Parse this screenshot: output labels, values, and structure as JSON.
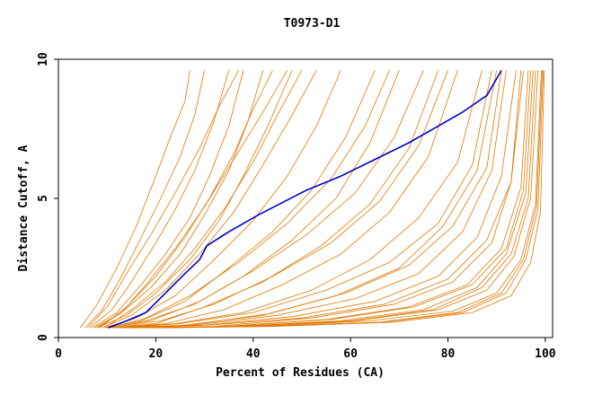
{
  "chart_data": {
    "type": "line",
    "title": "T0973-D1",
    "xlabel": "Percent of Residues (CA)",
    "ylabel": "Distance Cutoff, A",
    "xlim": [
      0,
      101.5
    ],
    "ylim": [
      0,
      10
    ],
    "xticks": [
      "0",
      "20",
      "40",
      "60",
      "80",
      "100"
    ],
    "yticks": [
      "0",
      "5",
      "10"
    ],
    "grid": false,
    "colors": {
      "highlight": "#0000cc",
      "others": "#e07800"
    },
    "highlight": {
      "x": [
        10.2,
        14,
        18,
        22,
        26,
        29,
        30.5,
        35,
        41,
        51,
        58,
        65,
        72,
        78,
        83,
        88,
        91
      ],
      "y": [
        0.35,
        0.6,
        0.9,
        1.6,
        2.3,
        2.8,
        3.3,
        3.8,
        4.4,
        5.3,
        5.8,
        6.4,
        7.0,
        7.6,
        8.1,
        8.7,
        9.6
      ]
    },
    "others": [
      {
        "x": [
          4.5,
          8,
          12,
          16,
          20,
          23,
          26,
          27
        ],
        "y": [
          0.35,
          1.2,
          2.5,
          4.0,
          5.8,
          7.2,
          8.5,
          9.6
        ]
      },
      {
        "x": [
          5.5,
          9,
          13,
          17,
          21,
          25,
          28,
          30
        ],
        "y": [
          0.35,
          1.0,
          2.2,
          3.6,
          5.0,
          6.5,
          8.0,
          9.6
        ]
      },
      {
        "x": [
          6.5,
          11,
          15,
          20,
          24,
          28,
          32,
          35
        ],
        "y": [
          0.35,
          1.0,
          2.0,
          3.4,
          4.6,
          6.0,
          7.8,
          9.6
        ]
      },
      {
        "x": [
          7,
          12,
          17,
          22,
          27,
          31,
          35,
          38
        ],
        "y": [
          0.35,
          0.9,
          1.9,
          3.0,
          4.3,
          5.8,
          7.6,
          9.6
        ]
      },
      {
        "x": [
          7.5,
          13,
          19,
          25,
          30,
          35,
          39,
          42
        ],
        "y": [
          0.35,
          0.9,
          1.8,
          3.0,
          4.4,
          6.0,
          7.8,
          9.6
        ]
      },
      {
        "x": [
          8,
          14,
          20,
          27,
          33,
          38,
          43,
          48
        ],
        "y": [
          0.35,
          0.8,
          1.6,
          2.8,
          4.2,
          5.8,
          7.6,
          9.6
        ]
      },
      {
        "x": [
          9,
          15,
          22,
          29,
          36,
          42,
          48,
          53
        ],
        "y": [
          0.35,
          0.8,
          1.7,
          3.0,
          4.5,
          6.2,
          8.0,
          9.6
        ]
      },
      {
        "x": [
          9.5,
          16,
          24,
          32,
          40,
          47,
          53,
          58
        ],
        "y": [
          0.35,
          0.7,
          1.5,
          2.8,
          4.2,
          5.8,
          7.6,
          9.6
        ]
      },
      {
        "x": [
          10,
          17,
          26,
          35,
          44,
          52,
          59,
          65
        ],
        "y": [
          0.35,
          0.6,
          1.3,
          2.5,
          3.8,
          5.3,
          7.2,
          9.6
        ]
      },
      {
        "x": [
          11,
          18,
          28,
          38,
          48,
          57,
          64,
          70
        ],
        "y": [
          0.35,
          0.6,
          1.2,
          2.2,
          3.5,
          5.0,
          7.0,
          9.6
        ]
      },
      {
        "x": [
          11.5,
          20,
          30,
          42,
          54,
          64,
          72,
          78
        ],
        "y": [
          0.35,
          0.5,
          1.1,
          2.0,
          3.3,
          4.8,
          6.8,
          9.6
        ]
      },
      {
        "x": [
          12,
          22,
          34,
          46,
          58,
          68,
          76,
          82
        ],
        "y": [
          0.35,
          0.5,
          1.0,
          1.9,
          3.0,
          4.5,
          6.5,
          9.6
        ]
      },
      {
        "x": [
          12.5,
          24,
          38,
          52,
          64,
          74,
          82,
          87
        ],
        "y": [
          0.35,
          0.5,
          0.9,
          1.7,
          2.8,
          4.3,
          6.3,
          9.6
        ]
      },
      {
        "x": [
          13,
          26,
          42,
          57,
          70,
          79,
          86,
          90
        ],
        "y": [
          0.35,
          0.45,
          0.8,
          1.5,
          2.5,
          4.0,
          6.0,
          9.6
        ]
      },
      {
        "x": [
          14,
          28,
          45,
          61,
          74,
          83,
          89,
          92
        ],
        "y": [
          0.35,
          0.45,
          0.8,
          1.4,
          2.3,
          3.8,
          6.0,
          9.6
        ]
      },
      {
        "x": [
          14.5,
          30,
          48,
          65,
          78,
          86,
          91,
          94
        ],
        "y": [
          0.35,
          0.45,
          0.75,
          1.3,
          2.2,
          3.6,
          5.8,
          9.6
        ]
      },
      {
        "x": [
          15,
          32,
          52,
          69,
          81,
          89,
          93,
          95
        ],
        "y": [
          0.35,
          0.4,
          0.7,
          1.2,
          2.0,
          3.4,
          5.6,
          9.6
        ]
      },
      {
        "x": [
          16,
          34,
          55,
          72,
          84,
          91,
          95,
          96.5
        ],
        "y": [
          0.35,
          0.4,
          0.65,
          1.1,
          1.9,
          3.2,
          5.4,
          9.6
        ]
      },
      {
        "x": [
          17,
          36,
          58,
          75,
          86,
          92,
          96,
          97.5
        ],
        "y": [
          0.35,
          0.4,
          0.6,
          1.0,
          1.8,
          3.0,
          5.2,
          9.6
        ]
      },
      {
        "x": [
          18,
          38,
          61,
          78,
          88,
          93.5,
          97,
          98.5
        ],
        "y": [
          0.35,
          0.4,
          0.6,
          1.0,
          1.7,
          2.9,
          5.0,
          9.6
        ]
      },
      {
        "x": [
          19,
          40,
          64,
          81,
          90,
          95,
          98,
          99.2
        ],
        "y": [
          0.35,
          0.4,
          0.6,
          0.95,
          1.6,
          2.8,
          4.8,
          9.6
        ]
      },
      {
        "x": [
          20,
          42,
          67,
          83,
          92,
          96,
          98.5,
          99.6
        ],
        "y": [
          0.35,
          0.4,
          0.55,
          0.9,
          1.6,
          2.8,
          4.6,
          9.6
        ]
      },
      {
        "x": [
          8.5,
          14,
          20,
          26,
          31,
          36,
          40,
          44
        ],
        "y": [
          0.35,
          1.1,
          2.2,
          3.6,
          5.0,
          6.6,
          8.2,
          9.6
        ]
      },
      {
        "x": [
          9.5,
          15,
          22,
          28,
          34,
          40,
          45,
          50
        ],
        "y": [
          0.35,
          1.0,
          2.0,
          3.2,
          4.6,
          6.3,
          8.0,
          9.6
        ]
      },
      {
        "x": [
          10.5,
          18,
          27,
          37,
          47,
          56,
          63,
          68
        ],
        "y": [
          0.35,
          0.7,
          1.5,
          2.7,
          4.1,
          5.7,
          7.6,
          9.6
        ]
      },
      {
        "x": [
          12,
          21,
          32,
          44,
          56,
          66,
          74,
          80
        ],
        "y": [
          0.35,
          0.6,
          1.2,
          2.2,
          3.4,
          4.9,
          6.9,
          9.6
        ]
      },
      {
        "x": [
          13.5,
          25,
          40,
          55,
          68,
          78,
          85,
          89
        ],
        "y": [
          0.35,
          0.5,
          0.9,
          1.7,
          2.7,
          4.1,
          6.2,
          9.6
        ]
      },
      {
        "x": [
          15.5,
          31,
          50,
          67,
          80,
          88,
          93,
          95.5
        ],
        "y": [
          0.35,
          0.45,
          0.7,
          1.2,
          2.1,
          3.5,
          5.6,
          9.6
        ]
      },
      {
        "x": [
          17.5,
          37,
          60,
          77,
          87,
          93,
          96.5,
          98
        ],
        "y": [
          0.35,
          0.4,
          0.6,
          1.0,
          1.8,
          3.0,
          5.0,
          9.6
        ]
      },
      {
        "x": [
          19.5,
          41,
          66,
          82,
          91,
          95.5,
          98.2,
          99.4
        ],
        "y": [
          0.35,
          0.4,
          0.55,
          0.9,
          1.6,
          2.8,
          4.7,
          9.6
        ]
      },
      {
        "x": [
          22,
          44,
          69,
          85,
          93,
          97,
          99,
          99.8
        ],
        "y": [
          0.35,
          0.4,
          0.55,
          0.9,
          1.5,
          2.7,
          4.5,
          9.6
        ]
      },
      {
        "x": [
          6,
          10,
          14,
          19,
          24,
          29,
          33,
          37
        ],
        "y": [
          0.35,
          1.1,
          2.3,
          3.7,
          5.2,
          6.8,
          8.3,
          9.6
        ]
      },
      {
        "x": [
          8,
          13,
          18,
          24,
          30,
          36,
          42,
          47
        ],
        "y": [
          0.35,
          0.9,
          1.9,
          3.2,
          4.7,
          6.4,
          8.1,
          9.6
        ]
      },
      {
        "x": [
          11,
          19,
          29,
          40,
          51,
          61,
          69,
          75
        ],
        "y": [
          0.35,
          0.6,
          1.3,
          2.4,
          3.7,
          5.2,
          7.2,
          9.6
        ]
      },
      {
        "x": [
          14,
          27,
          43,
          59,
          72,
          81,
          88,
          91
        ],
        "y": [
          0.35,
          0.45,
          0.85,
          1.6,
          2.6,
          4.0,
          6.1,
          9.6
        ]
      },
      {
        "x": [
          16.5,
          35,
          56,
          73,
          85,
          92,
          95.5,
          97
        ],
        "y": [
          0.35,
          0.4,
          0.65,
          1.1,
          1.9,
          3.2,
          5.3,
          9.6
        ]
      }
    ]
  }
}
